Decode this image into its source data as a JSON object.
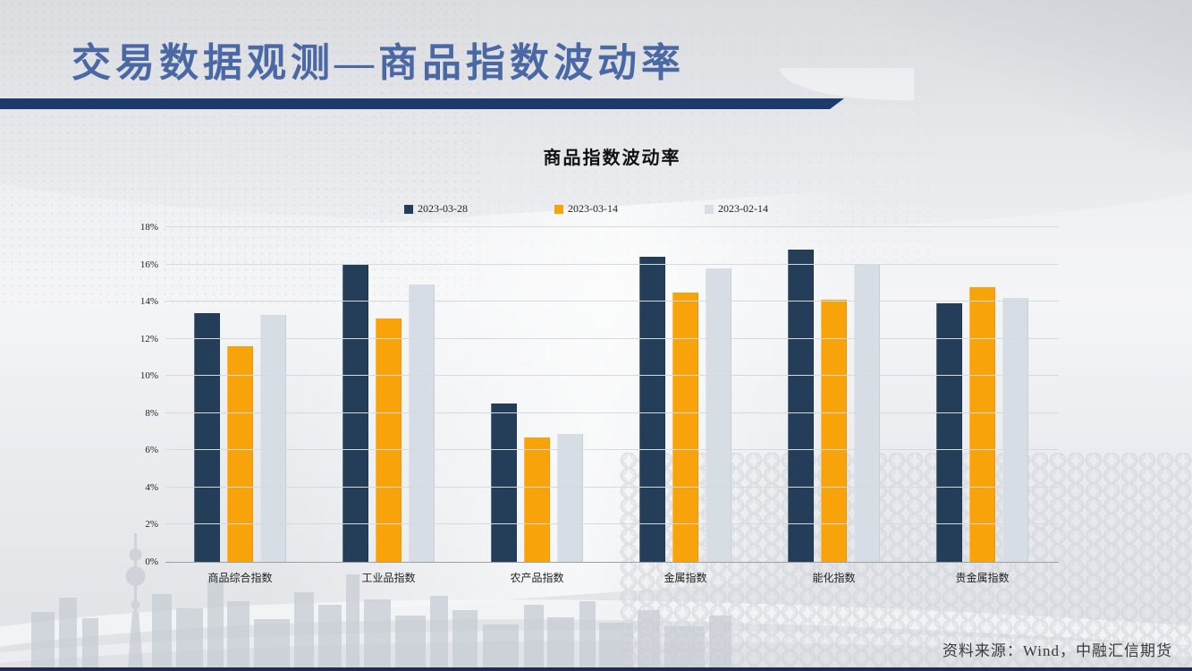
{
  "slide": {
    "title": "交易数据观测—商品指数波动率",
    "footer": "资料来源：Wind，中融汇信期货"
  },
  "chart_data": {
    "type": "bar",
    "title": "商品指数波动率",
    "categories": [
      "商品综合指数",
      "工业品指数",
      "农产品指数",
      "金属指数",
      "能化指数",
      "贵金属指数"
    ],
    "series": [
      {
        "name": "2023-03-28",
        "color": "#243d59",
        "values": [
          13.4,
          16.0,
          8.5,
          16.4,
          16.8,
          13.9
        ]
      },
      {
        "name": "2023-03-14",
        "color": "#f9a30b",
        "values": [
          11.6,
          13.1,
          6.7,
          14.5,
          14.1,
          14.8
        ]
      },
      {
        "name": "2023-02-14",
        "color": "#d7dde5",
        "values": [
          13.3,
          14.9,
          6.9,
          15.8,
          16.0,
          14.2
        ]
      }
    ],
    "ylim": [
      0,
      18
    ],
    "ytick_step": 2,
    "ytick_suffix": "%",
    "grid": true,
    "legend_position": "top"
  },
  "theme": {
    "title_color": "#4a69a4",
    "header_bar_color": "#1c3a6e",
    "bottom_strip_color": "#202c4e",
    "gridline_color": "#d7d9dc"
  }
}
